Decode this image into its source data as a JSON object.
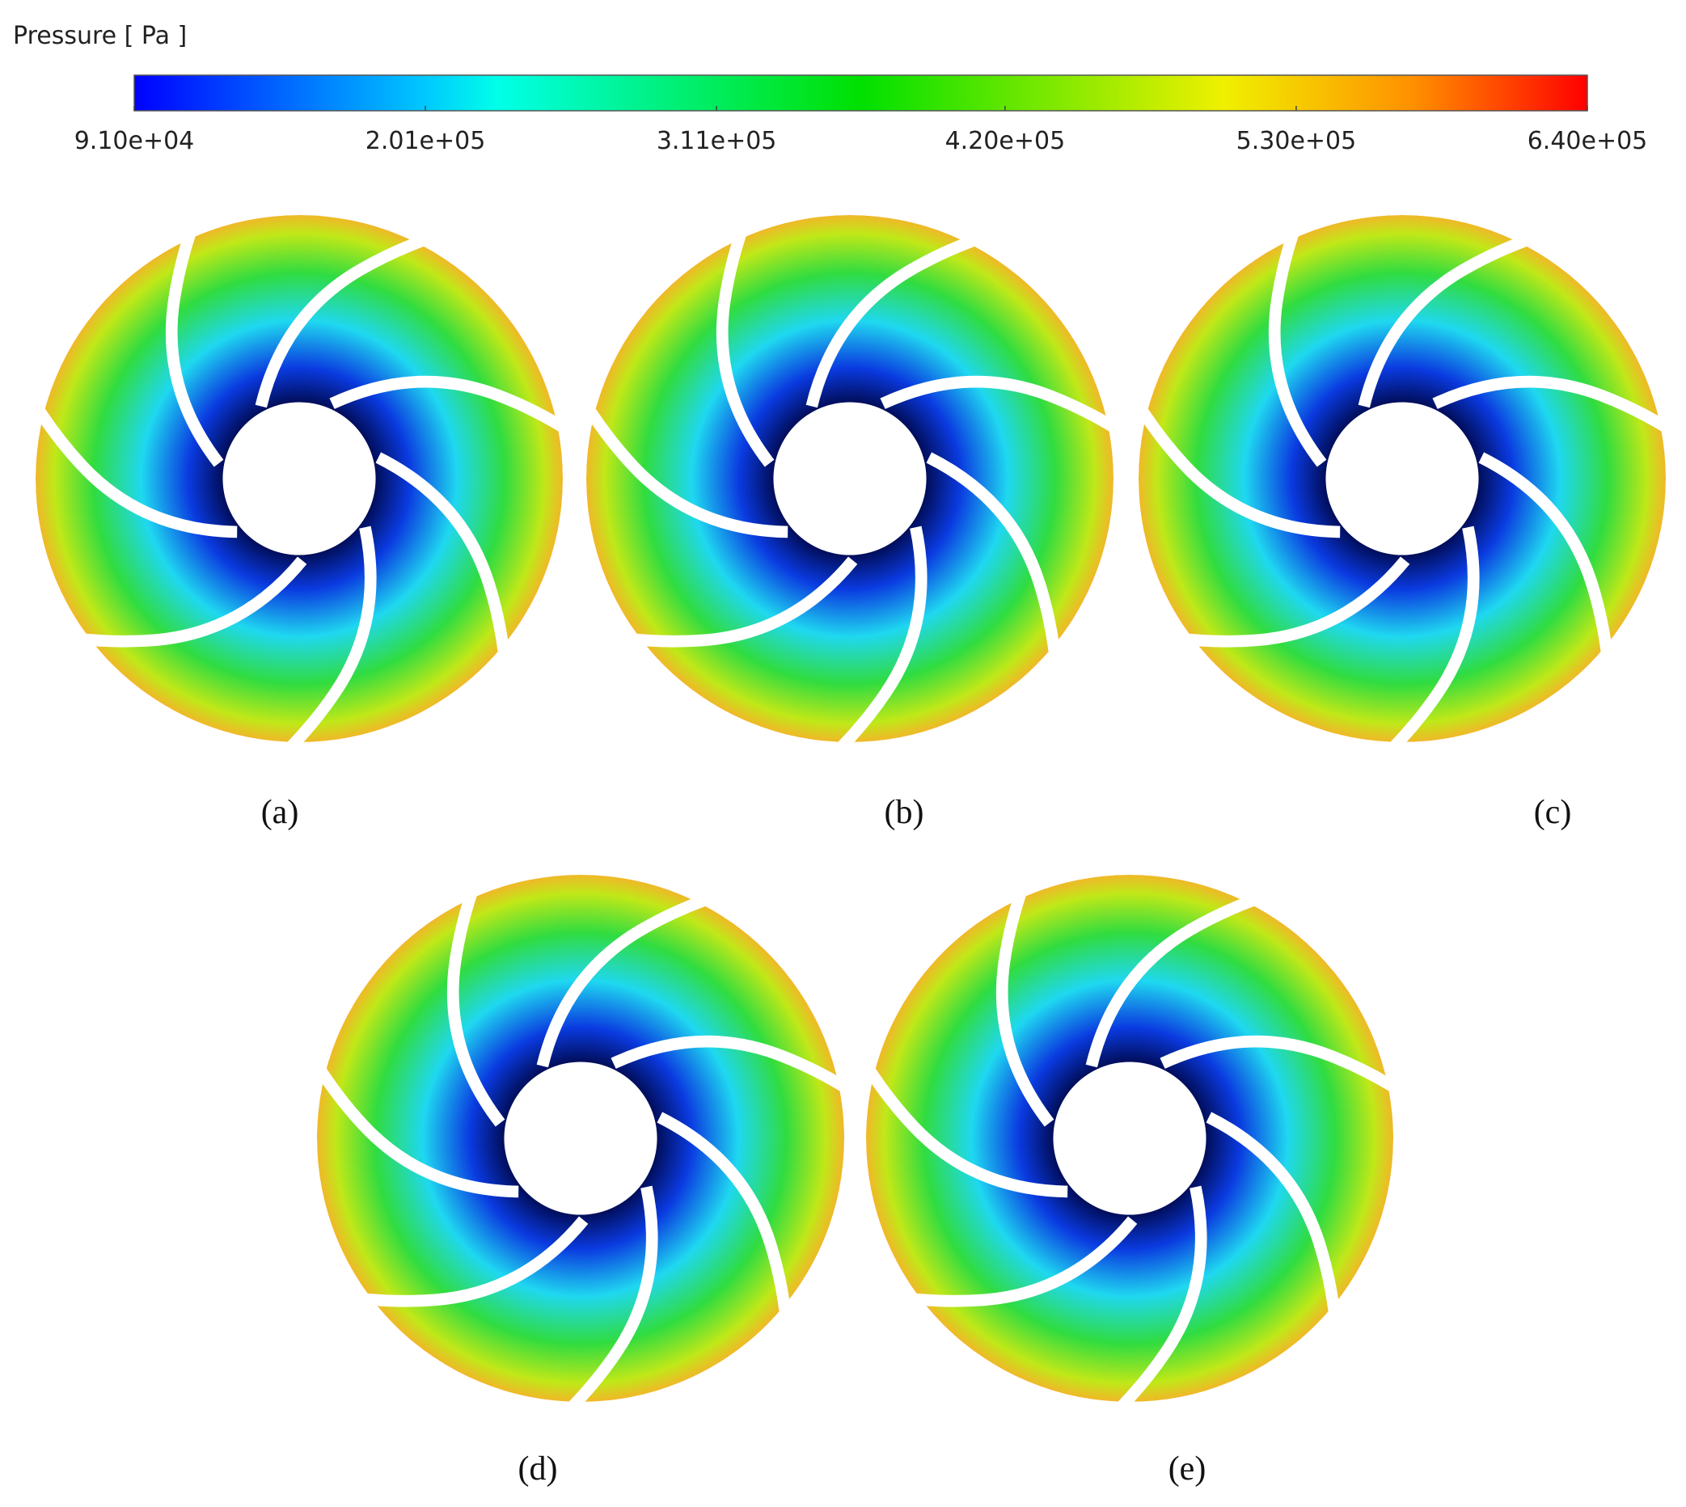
{
  "colorbar": {
    "title": "Pressure [ Pa ]",
    "lim": [
      91000,
      640000
    ],
    "ticks": [
      {
        "value": 91000,
        "label": "9.10e+04"
      },
      {
        "value": 201000,
        "label": "2.01e+05"
      },
      {
        "value": 311000,
        "label": "3.11e+05"
      },
      {
        "value": 420000,
        "label": "4.20e+05"
      },
      {
        "value": 530000,
        "label": "5.30e+05"
      },
      {
        "value": 640000,
        "label": "6.40e+05"
      }
    ]
  },
  "panels": [
    {
      "label": "(a)"
    },
    {
      "label": "(b)"
    },
    {
      "label": "(c)"
    },
    {
      "label": "(d)"
    },
    {
      "label": "(e)"
    }
  ]
}
